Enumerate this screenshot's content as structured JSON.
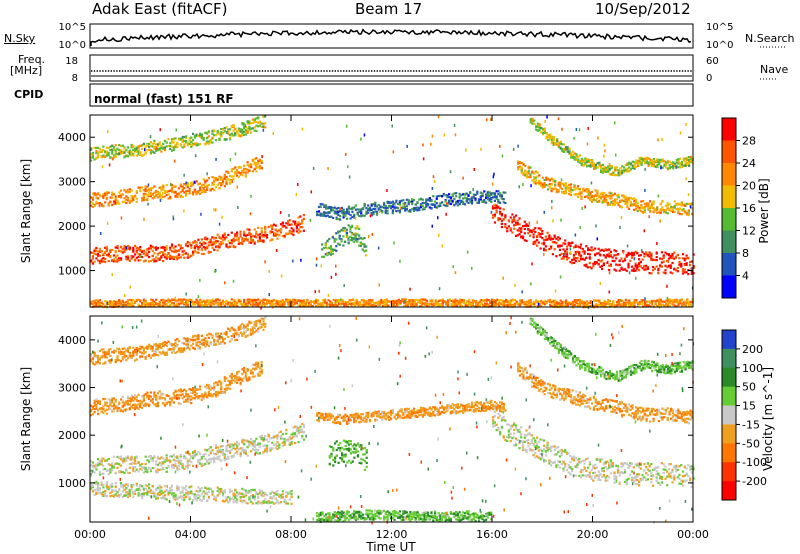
{
  "header": {
    "station": "Adak East (fitACF)",
    "beam": "Beam 17",
    "date": "10/Sep/2012"
  },
  "strip_panels": {
    "nsky_label": "N.Sky",
    "nsky_ticks": [
      "10^5",
      "10^0"
    ],
    "nsearch_label": "N.Search",
    "nsearch_ticks": [
      "10^5",
      "10^0"
    ],
    "freq_label": "Freq.",
    "freq_unit": "[MHz]",
    "freq_ticks": [
      "18",
      "8"
    ],
    "nave_label": "Nave",
    "nave_ticks": [
      "60",
      "0"
    ],
    "cpid_label": "CPID",
    "cpid_text": "normal (fast) 151 RF"
  },
  "chart_data": [
    {
      "type": "heatmap",
      "name": "power",
      "ylabel": "Slant Range [km]",
      "xlabel": "Time UT",
      "y_ticks": [
        "1000",
        "2000",
        "3000",
        "4000"
      ],
      "x_ticks": [
        "00:00",
        "04:00",
        "08:00",
        "12:00",
        "16:00",
        "20:00",
        "00:00"
      ],
      "xlim": [
        0,
        24
      ],
      "ylim": [
        180,
        4500
      ],
      "colorbar": {
        "label": "Power [dB]",
        "ticks": [
          "4",
          "8",
          "12",
          "16",
          "20",
          "24",
          "28"
        ],
        "colors": [
          "#0000ff",
          "#2255bb",
          "#3f8f5f",
          "#55bb33",
          "#f0bb00",
          "#ff8800",
          "#ff5500",
          "#ff0000"
        ]
      },
      "bands": [
        {
          "t": [
            0,
            1,
            2,
            3,
            4,
            5,
            6,
            7,
            8,
            8.5
          ],
          "r": [
            1350,
            1400,
            1400,
            1420,
            1500,
            1650,
            1750,
            1850,
            2000,
            2100
          ],
          "w": 180,
          "dB": 24
        },
        {
          "t": [
            0,
            1,
            2,
            3,
            4,
            5,
            6,
            6.8
          ],
          "r": [
            2600,
            2650,
            2750,
            2800,
            2850,
            3000,
            3250,
            3450
          ],
          "w": 160,
          "dB": 20
        },
        {
          "t": [
            0,
            1,
            2,
            3,
            4,
            5,
            6,
            7
          ],
          "r": [
            3650,
            3700,
            3750,
            3850,
            3950,
            4050,
            4200,
            4400
          ],
          "w": 150,
          "dB": 14
        },
        {
          "t": [
            9,
            10,
            11,
            12,
            13,
            14,
            15,
            16,
            16.5
          ],
          "r": [
            2400,
            2300,
            2400,
            2450,
            2500,
            2600,
            2650,
            2700,
            2650
          ],
          "w": 140,
          "dB": 6
        },
        {
          "t": [
            9.2,
            9.8,
            10.5,
            11
          ],
          "r": [
            1400,
            1700,
            1900,
            1500
          ],
          "w": 220,
          "dB": 10
        },
        {
          "t": [
            16,
            17,
            18,
            19,
            20,
            21,
            22,
            23,
            24
          ],
          "r": [
            2300,
            2000,
            1700,
            1450,
            1300,
            1250,
            1200,
            1200,
            1150
          ],
          "w": 240,
          "dB": 28
        },
        {
          "t": [
            17,
            18,
            19,
            20,
            21,
            22,
            23,
            24
          ],
          "r": [
            3400,
            3000,
            2850,
            2700,
            2600,
            2450,
            2450,
            2400
          ],
          "w": 140,
          "dB": 18
        },
        {
          "t": [
            17.5,
            18.5,
            19.5,
            20.5,
            21,
            22,
            23,
            24
          ],
          "r": [
            4400,
            3900,
            3500,
            3300,
            3250,
            3500,
            3400,
            3500
          ],
          "w": 100,
          "dB": 14
        },
        {
          "t": [
            0,
            4,
            8,
            12,
            16,
            20,
            24
          ],
          "r": [
            280,
            300,
            290,
            300,
            290,
            280,
            300
          ],
          "w": 80,
          "dB": 20
        }
      ]
    },
    {
      "type": "heatmap",
      "name": "velocity",
      "ylabel": "Slant Range [km]",
      "xlabel": "Time UT",
      "y_ticks": [
        "1000",
        "2000",
        "3000",
        "4000"
      ],
      "x_ticks": [
        "00:00",
        "04:00",
        "08:00",
        "12:00",
        "16:00",
        "20:00",
        "00:00"
      ],
      "xlim": [
        0,
        24
      ],
      "ylim": [
        180,
        4500
      ],
      "colorbar": {
        "label": "Velocity [m s^-1]",
        "ticks": [
          "200",
          "100",
          "50",
          "15",
          "-15",
          "-50",
          "-100",
          "-200"
        ],
        "colors": [
          "#2244cc",
          "#3f8f5f",
          "#2a8a2a",
          "#66cc33",
          "#c8c8c8",
          "#f0a020",
          "#ff7700",
          "#ff3300",
          "#ff0000"
        ]
      },
      "bands": [
        {
          "t": [
            0,
            1,
            2,
            3,
            4,
            5,
            6,
            7,
            8,
            8.5
          ],
          "r": [
            1350,
            1400,
            1400,
            1420,
            1500,
            1650,
            1750,
            1850,
            2000,
            2100
          ],
          "w": 180,
          "v": 0
        },
        {
          "t": [
            0,
            1,
            2,
            3,
            4,
            5,
            6,
            6.8
          ],
          "r": [
            2600,
            2650,
            2750,
            2800,
            2850,
            3000,
            3250,
            3450
          ],
          "w": 160,
          "v": -40
        },
        {
          "t": [
            0,
            1,
            2,
            3,
            4,
            5,
            6,
            7
          ],
          "r": [
            3650,
            3700,
            3750,
            3850,
            3950,
            4050,
            4200,
            4400
          ],
          "w": 150,
          "v": -40
        },
        {
          "t": [
            9.5,
            10,
            10.5,
            11
          ],
          "r": [
            1600,
            1700,
            1650,
            1500
          ],
          "w": 250,
          "v": 40
        },
        {
          "t": [
            9,
            10,
            11,
            12,
            13,
            14,
            15,
            16,
            16.5
          ],
          "r": [
            2400,
            2350,
            2400,
            2450,
            2500,
            2550,
            2600,
            2650,
            2600
          ],
          "w": 100,
          "v": -40
        },
        {
          "t": [
            16,
            17,
            18,
            19,
            20,
            21,
            22,
            23,
            24
          ],
          "r": [
            2300,
            2000,
            1700,
            1450,
            1300,
            1250,
            1200,
            1200,
            1150
          ],
          "w": 240,
          "v": 0
        },
        {
          "t": [
            17,
            18,
            19,
            20,
            21,
            22,
            23,
            24
          ],
          "r": [
            3400,
            3000,
            2850,
            2700,
            2600,
            2450,
            2450,
            2400
          ],
          "w": 140,
          "v": -40
        },
        {
          "t": [
            17.5,
            18.5,
            19.5,
            20.5,
            21,
            22,
            23,
            24
          ],
          "r": [
            4400,
            3900,
            3500,
            3300,
            3250,
            3500,
            3400,
            3500
          ],
          "w": 100,
          "v": 40
        },
        {
          "t": [
            0,
            2,
            4,
            6,
            8
          ],
          "r": [
            900,
            850,
            800,
            750,
            700
          ],
          "w": 150,
          "v": 0
        },
        {
          "t": [
            9,
            11,
            13,
            15,
            16
          ],
          "r": [
            300,
            350,
            320,
            330,
            300
          ],
          "w": 100,
          "v": 40
        }
      ]
    }
  ]
}
